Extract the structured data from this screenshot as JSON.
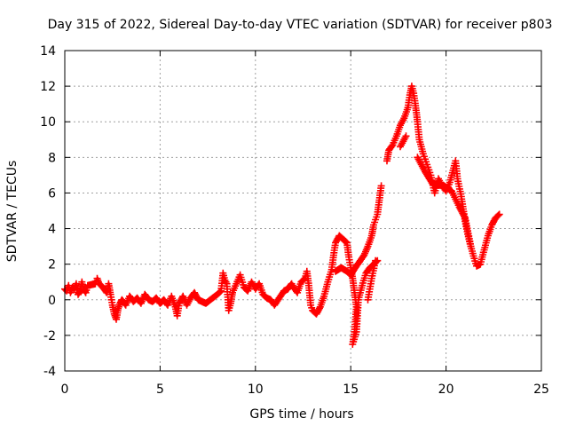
{
  "chart_data": {
    "type": "scatter",
    "title": "Day 315 of 2022, Sidereal Day-to-day VTEC variation (SDTVAR) for receiver p803",
    "xlabel": "GPS time / hours",
    "ylabel": "SDTVAR / TECUs",
    "xlim": [
      0,
      25
    ],
    "ylim": [
      -4,
      14
    ],
    "xticks": [
      "0",
      "5",
      "10",
      "15",
      "20",
      "25"
    ],
    "yticks": [
      "-4",
      "-2",
      "0",
      "2",
      "4",
      "6",
      "8",
      "10",
      "12",
      "14"
    ],
    "grid": true,
    "marker": "plus",
    "series": [
      {
        "name": "SDTVAR p803",
        "color": "#ff0000",
        "points": [
          [
            0.0,
            0.6
          ],
          [
            0.1,
            0.5
          ],
          [
            0.2,
            0.8
          ],
          [
            0.3,
            0.4
          ],
          [
            0.4,
            0.7
          ],
          [
            0.5,
            0.6
          ],
          [
            0.6,
            0.9
          ],
          [
            0.7,
            0.3
          ],
          [
            0.8,
            0.5
          ],
          [
            0.9,
            1.0
          ],
          [
            1.0,
            0.6
          ],
          [
            1.1,
            0.4
          ],
          [
            1.2,
            0.8
          ],
          [
            1.6,
            0.9
          ],
          [
            1.7,
            1.2
          ],
          [
            1.8,
            0.9
          ],
          [
            2.0,
            0.7
          ],
          [
            2.2,
            0.4
          ],
          [
            2.3,
            0.9
          ],
          [
            2.4,
            0.3
          ],
          [
            2.5,
            -0.3
          ],
          [
            2.6,
            -0.8
          ],
          [
            2.7,
            -1.1
          ],
          [
            2.8,
            -0.5
          ],
          [
            2.9,
            -0.2
          ],
          [
            3.0,
            0.0
          ],
          [
            3.2,
            -0.3
          ],
          [
            3.4,
            0.2
          ],
          [
            3.6,
            -0.1
          ],
          [
            3.8,
            0.1
          ],
          [
            4.0,
            -0.2
          ],
          [
            4.2,
            0.3
          ],
          [
            4.4,
            0.0
          ],
          [
            4.6,
            -0.1
          ],
          [
            4.8,
            0.1
          ],
          [
            5.0,
            -0.2
          ],
          [
            5.2,
            0.0
          ],
          [
            5.4,
            -0.3
          ],
          [
            5.6,
            0.2
          ],
          [
            5.8,
            -0.4
          ],
          [
            5.9,
            -0.9
          ],
          [
            6.0,
            -0.2
          ],
          [
            6.2,
            0.2
          ],
          [
            6.4,
            -0.3
          ],
          [
            6.6,
            0.1
          ],
          [
            6.8,
            0.4
          ],
          [
            7.0,
            0.0
          ],
          [
            7.2,
            -0.1
          ],
          [
            7.4,
            -0.2
          ],
          [
            8.0,
            0.3
          ],
          [
            8.2,
            0.5
          ],
          [
            8.3,
            1.5
          ],
          [
            8.4,
            1.1
          ],
          [
            8.5,
            0.9
          ],
          [
            8.6,
            -0.6
          ],
          [
            8.7,
            -0.2
          ],
          [
            8.8,
            0.4
          ],
          [
            9.0,
            0.9
          ],
          [
            9.2,
            1.4
          ],
          [
            9.4,
            0.7
          ],
          [
            9.6,
            0.5
          ],
          [
            9.8,
            1.0
          ],
          [
            10.0,
            0.6
          ],
          [
            10.2,
            0.9
          ],
          [
            10.4,
            0.3
          ],
          [
            10.6,
            0.1
          ],
          [
            10.8,
            0.0
          ],
          [
            11.0,
            -0.3
          ],
          [
            11.5,
            0.5
          ],
          [
            11.7,
            0.6
          ],
          [
            11.9,
            0.9
          ],
          [
            12.0,
            0.7
          ],
          [
            12.2,
            0.4
          ],
          [
            12.4,
            1.0
          ],
          [
            12.6,
            1.2
          ],
          [
            12.7,
            1.6
          ],
          [
            12.8,
            0.8
          ],
          [
            12.9,
            -0.3
          ],
          [
            13.0,
            -0.6
          ],
          [
            13.2,
            -0.8
          ],
          [
            13.4,
            -0.4
          ],
          [
            13.6,
            0.2
          ],
          [
            13.8,
            1.0
          ],
          [
            14.0,
            1.7
          ],
          [
            14.1,
            2.5
          ],
          [
            14.2,
            3.2
          ],
          [
            14.4,
            3.6
          ],
          [
            14.6,
            3.4
          ],
          [
            14.8,
            3.2
          ],
          [
            14.9,
            2.4
          ],
          [
            15.0,
            1.8
          ],
          [
            15.1,
            1.2
          ],
          [
            15.2,
            0.4
          ],
          [
            15.3,
            -0.4
          ],
          [
            15.2,
            -1.8
          ],
          [
            15.1,
            -2.5
          ],
          [
            15.3,
            -1.8
          ],
          [
            15.4,
            0.0
          ],
          [
            15.6,
            0.8
          ],
          [
            15.8,
            1.5
          ],
          [
            16.0,
            1.8
          ],
          [
            16.2,
            2.0
          ],
          [
            16.4,
            2.2
          ],
          [
            14.2,
            1.6
          ],
          [
            14.5,
            1.8
          ],
          [
            14.8,
            1.6
          ],
          [
            15.0,
            1.4
          ],
          [
            15.3,
            1.9
          ],
          [
            15.7,
            2.5
          ],
          [
            15.9,
            3.0
          ],
          [
            16.1,
            3.6
          ],
          [
            16.2,
            4.2
          ],
          [
            16.4,
            4.8
          ],
          [
            16.5,
            5.6
          ],
          [
            16.6,
            6.4
          ],
          [
            15.9,
            0.0
          ],
          [
            16.0,
            0.6
          ],
          [
            16.1,
            1.2
          ],
          [
            16.3,
            2.2
          ],
          [
            16.9,
            7.8
          ],
          [
            17.0,
            8.4
          ],
          [
            17.2,
            8.7
          ],
          [
            17.4,
            9.2
          ],
          [
            17.6,
            9.8
          ],
          [
            17.8,
            10.2
          ],
          [
            18.0,
            10.8
          ],
          [
            18.1,
            11.5
          ],
          [
            18.2,
            12.0
          ],
          [
            18.3,
            11.6
          ],
          [
            18.4,
            10.9
          ],
          [
            18.5,
            10.0
          ],
          [
            18.6,
            9.0
          ],
          [
            18.8,
            8.2
          ],
          [
            19.0,
            7.6
          ],
          [
            19.2,
            7.0
          ],
          [
            19.4,
            6.0
          ],
          [
            19.6,
            6.8
          ],
          [
            19.8,
            6.4
          ],
          [
            20.0,
            6.1
          ],
          [
            20.2,
            6.6
          ],
          [
            20.4,
            7.4
          ],
          [
            20.5,
            7.8
          ],
          [
            20.6,
            6.8
          ],
          [
            20.8,
            5.8
          ],
          [
            21.0,
            4.4
          ],
          [
            21.2,
            3.4
          ],
          [
            21.4,
            2.6
          ],
          [
            21.6,
            1.9
          ],
          [
            21.8,
            2.0
          ],
          [
            22.0,
            2.8
          ],
          [
            22.2,
            3.6
          ],
          [
            22.4,
            4.2
          ],
          [
            22.6,
            4.6
          ],
          [
            22.8,
            4.8
          ],
          [
            17.6,
            8.6
          ],
          [
            17.9,
            9.2
          ],
          [
            18.5,
            8.0
          ],
          [
            18.9,
            7.2
          ],
          [
            19.3,
            6.5
          ],
          [
            19.9,
            6.4
          ],
          [
            20.3,
            6.1
          ],
          [
            20.7,
            5.2
          ],
          [
            21.0,
            4.6
          ],
          [
            21.3,
            3.0
          ]
        ]
      }
    ]
  }
}
